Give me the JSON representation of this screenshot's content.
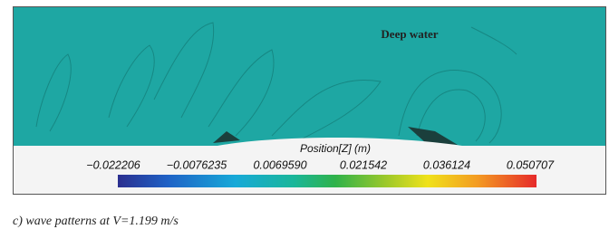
{
  "figure": {
    "field_label": "Deep water",
    "colorbar": {
      "title": "Position[Z] (m)",
      "ticks": [
        "−0.022206",
        "−0.0076235",
        "0.0069590",
        "0.021542",
        "0.036124",
        "0.050707"
      ]
    },
    "caption": "c) wave patterns at V=1.199 m/s"
  }
}
